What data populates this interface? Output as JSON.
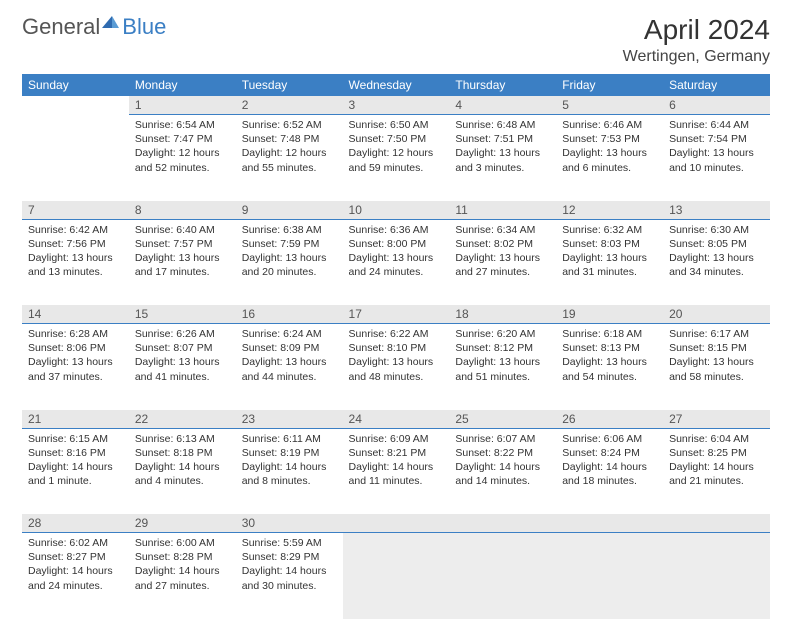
{
  "logo": {
    "text1": "General",
    "text2": "Blue"
  },
  "title": "April 2024",
  "location": "Wertingen, Germany",
  "day_headers": [
    "Sunday",
    "Monday",
    "Tuesday",
    "Wednesday",
    "Thursday",
    "Friday",
    "Saturday"
  ],
  "colors": {
    "header_bg": "#3b7fc4",
    "header_text": "#ffffff",
    "daynum_bg": "#e8e8e8",
    "trailing_bg": "#ededed",
    "divider": "#3b7fc4"
  },
  "typography": {
    "title_fontsize": 28,
    "location_fontsize": 16,
    "header_fontsize": 12,
    "daynum_fontsize": 12,
    "cell_fontsize": 10.5
  },
  "start_weekday": 1,
  "days_in_month": 30,
  "days": {
    "1": {
      "sunrise": "6:54 AM",
      "sunset": "7:47 PM",
      "daylight": "12 hours and 52 minutes."
    },
    "2": {
      "sunrise": "6:52 AM",
      "sunset": "7:48 PM",
      "daylight": "12 hours and 55 minutes."
    },
    "3": {
      "sunrise": "6:50 AM",
      "sunset": "7:50 PM",
      "daylight": "12 hours and 59 minutes."
    },
    "4": {
      "sunrise": "6:48 AM",
      "sunset": "7:51 PM",
      "daylight": "13 hours and 3 minutes."
    },
    "5": {
      "sunrise": "6:46 AM",
      "sunset": "7:53 PM",
      "daylight": "13 hours and 6 minutes."
    },
    "6": {
      "sunrise": "6:44 AM",
      "sunset": "7:54 PM",
      "daylight": "13 hours and 10 minutes."
    },
    "7": {
      "sunrise": "6:42 AM",
      "sunset": "7:56 PM",
      "daylight": "13 hours and 13 minutes."
    },
    "8": {
      "sunrise": "6:40 AM",
      "sunset": "7:57 PM",
      "daylight": "13 hours and 17 minutes."
    },
    "9": {
      "sunrise": "6:38 AM",
      "sunset": "7:59 PM",
      "daylight": "13 hours and 20 minutes."
    },
    "10": {
      "sunrise": "6:36 AM",
      "sunset": "8:00 PM",
      "daylight": "13 hours and 24 minutes."
    },
    "11": {
      "sunrise": "6:34 AM",
      "sunset": "8:02 PM",
      "daylight": "13 hours and 27 minutes."
    },
    "12": {
      "sunrise": "6:32 AM",
      "sunset": "8:03 PM",
      "daylight": "13 hours and 31 minutes."
    },
    "13": {
      "sunrise": "6:30 AM",
      "sunset": "8:05 PM",
      "daylight": "13 hours and 34 minutes."
    },
    "14": {
      "sunrise": "6:28 AM",
      "sunset": "8:06 PM",
      "daylight": "13 hours and 37 minutes."
    },
    "15": {
      "sunrise": "6:26 AM",
      "sunset": "8:07 PM",
      "daylight": "13 hours and 41 minutes."
    },
    "16": {
      "sunrise": "6:24 AM",
      "sunset": "8:09 PM",
      "daylight": "13 hours and 44 minutes."
    },
    "17": {
      "sunrise": "6:22 AM",
      "sunset": "8:10 PM",
      "daylight": "13 hours and 48 minutes."
    },
    "18": {
      "sunrise": "6:20 AM",
      "sunset": "8:12 PM",
      "daylight": "13 hours and 51 minutes."
    },
    "19": {
      "sunrise": "6:18 AM",
      "sunset": "8:13 PM",
      "daylight": "13 hours and 54 minutes."
    },
    "20": {
      "sunrise": "6:17 AM",
      "sunset": "8:15 PM",
      "daylight": "13 hours and 58 minutes."
    },
    "21": {
      "sunrise": "6:15 AM",
      "sunset": "8:16 PM",
      "daylight": "14 hours and 1 minute."
    },
    "22": {
      "sunrise": "6:13 AM",
      "sunset": "8:18 PM",
      "daylight": "14 hours and 4 minutes."
    },
    "23": {
      "sunrise": "6:11 AM",
      "sunset": "8:19 PM",
      "daylight": "14 hours and 8 minutes."
    },
    "24": {
      "sunrise": "6:09 AM",
      "sunset": "8:21 PM",
      "daylight": "14 hours and 11 minutes."
    },
    "25": {
      "sunrise": "6:07 AM",
      "sunset": "8:22 PM",
      "daylight": "14 hours and 14 minutes."
    },
    "26": {
      "sunrise": "6:06 AM",
      "sunset": "8:24 PM",
      "daylight": "14 hours and 18 minutes."
    },
    "27": {
      "sunrise": "6:04 AM",
      "sunset": "8:25 PM",
      "daylight": "14 hours and 21 minutes."
    },
    "28": {
      "sunrise": "6:02 AM",
      "sunset": "8:27 PM",
      "daylight": "14 hours and 24 minutes."
    },
    "29": {
      "sunrise": "6:00 AM",
      "sunset": "8:28 PM",
      "daylight": "14 hours and 27 minutes."
    },
    "30": {
      "sunrise": "5:59 AM",
      "sunset": "8:29 PM",
      "daylight": "14 hours and 30 minutes."
    }
  },
  "labels": {
    "sunrise": "Sunrise:",
    "sunset": "Sunset:",
    "daylight": "Daylight:"
  }
}
